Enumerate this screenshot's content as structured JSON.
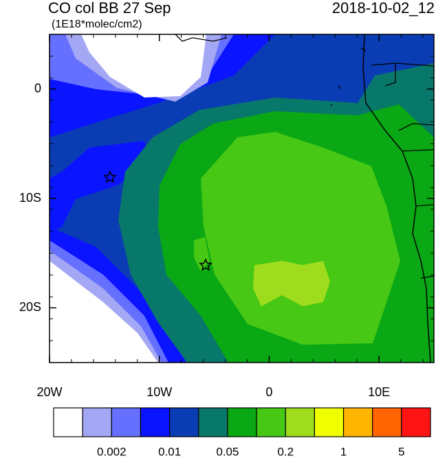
{
  "header": {
    "title": "CO col BB 27 Sep",
    "units": "(1E18*molec/cm2)",
    "time": "2018-10-02_12"
  },
  "map": {
    "lon_range": [
      -20,
      15
    ],
    "lat_range": [
      -25,
      5
    ],
    "lon_ticks": [
      {
        "value": -20,
        "label": "20W"
      },
      {
        "value": -10,
        "label": "10W"
      },
      0,
      {
        "value": 10,
        "label": "10E"
      }
    ],
    "lat_ticks": [
      0,
      {
        "value": -10,
        "label": "10S"
      },
      {
        "value": -20,
        "label": "20S"
      }
    ]
  },
  "colorbar": {
    "colors": [
      "#ffffff",
      "#a4a8f4",
      "#6670ff",
      "#0a14ff",
      "#0a3cb4",
      "#08786a",
      "#0aa814",
      "#46c814",
      "#a0dc1e",
      "#f0ff00",
      "#ffb400",
      "#ff6400",
      "#ff1414"
    ],
    "labels": [
      "0.002",
      "0.01",
      "0.05",
      "0.2",
      "1",
      "5"
    ]
  }
}
